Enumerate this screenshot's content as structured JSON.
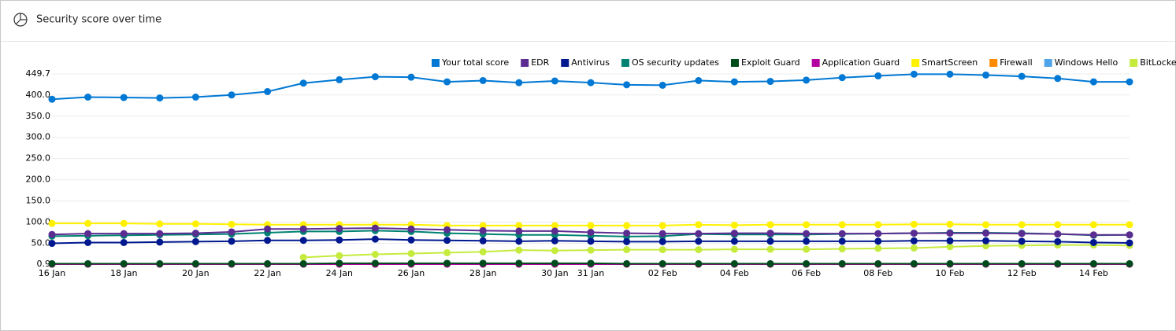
{
  "header": {
    "title": "Security score over time"
  },
  "chart_data": {
    "type": "line",
    "categories": [
      "16 Jan",
      null,
      "18 Jan",
      null,
      "20 Jan",
      null,
      "22 Jan",
      null,
      "24 Jan",
      null,
      "26 Jan",
      null,
      "28 Jan",
      null,
      "30 Jan",
      "31 Jan",
      null,
      "02 Feb",
      null,
      "04 Feb",
      null,
      "06 Feb",
      null,
      "08 Feb",
      null,
      "10 Feb",
      null,
      "12 Feb",
      null,
      "14 Feb",
      null
    ],
    "series": [
      {
        "name": "Your total score",
        "color": "#0078d4",
        "values": [
          390,
          395,
          394,
          393,
          395,
          400,
          408,
          428,
          436,
          443,
          442,
          431,
          434,
          429,
          433,
          429,
          424,
          423,
          434,
          431,
          432,
          435,
          441,
          445,
          449,
          449,
          447,
          444,
          439,
          431,
          431
        ]
      },
      {
        "name": "EDR",
        "color": "#5c2d91",
        "values": [
          71,
          73,
          73,
          73,
          74,
          77,
          84,
          84,
          85,
          86,
          84,
          82,
          80,
          79,
          79,
          76,
          74,
          73,
          73,
          74,
          74,
          73,
          73,
          73,
          74,
          74,
          74,
          73,
          72,
          70,
          70
        ]
      },
      {
        "name": "Antivirus",
        "color": "#00188f",
        "values": [
          50,
          52,
          52,
          53,
          54,
          55,
          57,
          57,
          58,
          60,
          58,
          57,
          56,
          55,
          56,
          55,
          54,
          54,
          55,
          55,
          55,
          55,
          55,
          55,
          56,
          56,
          56,
          55,
          54,
          52,
          51
        ]
      },
      {
        "name": "OS security updates",
        "color": "#008272",
        "values": [
          67,
          68,
          69,
          70,
          71,
          72,
          75,
          78,
          78,
          80,
          78,
          74,
          72,
          70,
          70,
          68,
          66,
          67,
          72,
          71,
          71,
          71,
          72,
          73,
          74,
          75,
          75,
          74,
          72,
          69,
          70
        ]
      },
      {
        "name": "Exploit Guard",
        "color": "#004b1c",
        "values": [
          2,
          2,
          2,
          2,
          2,
          2,
          2,
          2,
          3,
          3,
          3,
          3,
          3,
          3,
          3,
          3,
          2,
          2,
          2,
          2,
          2,
          2,
          2,
          2,
          2,
          2,
          2,
          2,
          2,
          2,
          2
        ]
      },
      {
        "name": "Application Guard",
        "color": "#b4009e",
        "values": [
          1,
          1,
          1,
          1,
          1,
          1,
          1,
          1,
          1,
          1,
          1,
          1,
          1,
          1,
          1,
          1,
          1,
          1,
          1,
          1,
          1,
          1,
          1,
          1,
          1,
          1,
          1,
          1,
          1,
          1,
          1
        ]
      },
      {
        "name": "SmartScreen",
        "color": "#fff100",
        "values": [
          97,
          97,
          97,
          96,
          96,
          95,
          94,
          94,
          94,
          94,
          94,
          92,
          92,
          92,
          92,
          92,
          92,
          92,
          94,
          93,
          94,
          94,
          94,
          94,
          95,
          95,
          94,
          94,
          94,
          94,
          94
        ]
      },
      {
        "name": "Firewall",
        "color": "#ff8c00",
        "values": [
          1,
          1,
          1,
          1,
          1,
          1,
          1,
          1,
          1,
          1,
          1,
          1,
          1,
          1,
          1,
          1,
          1,
          1,
          1,
          1,
          1,
          1,
          1,
          1,
          1,
          1,
          1,
          1,
          1,
          1,
          1
        ]
      },
      {
        "name": "Windows Hello",
        "color": "#4fa3e8",
        "values": [
          1,
          1,
          1,
          1,
          1,
          1,
          1,
          1,
          1,
          1,
          1,
          1,
          1,
          1,
          1,
          1,
          1,
          1,
          1,
          1,
          1,
          1,
          1,
          1,
          1,
          1,
          1,
          1,
          1,
          1,
          1
        ]
      },
      {
        "name": "BitLocker",
        "color": "#c5eb3d",
        "values": [
          null,
          null,
          null,
          null,
          null,
          null,
          null,
          17,
          21,
          24,
          26,
          28,
          30,
          34,
          33,
          34,
          35,
          35,
          35,
          36,
          36,
          36,
          37,
          38,
          39,
          42,
          44,
          45,
          46,
          46,
          45
        ]
      }
    ],
    "ylim": [
      0.9,
      449.7
    ],
    "yticks": [
      0.9,
      {
        "value": 50,
        "label": "50.0"
      },
      {
        "value": 100,
        "label": "100.0"
      },
      {
        "value": 150,
        "label": "150.0"
      },
      {
        "value": 200,
        "label": "200.0"
      },
      {
        "value": 250,
        "label": "250.0"
      },
      {
        "value": 300,
        "label": "300.0"
      },
      {
        "value": 350,
        "label": "350.0"
      },
      {
        "value": 400,
        "label": "400.0"
      },
      449.7
    ],
    "grid": true
  }
}
